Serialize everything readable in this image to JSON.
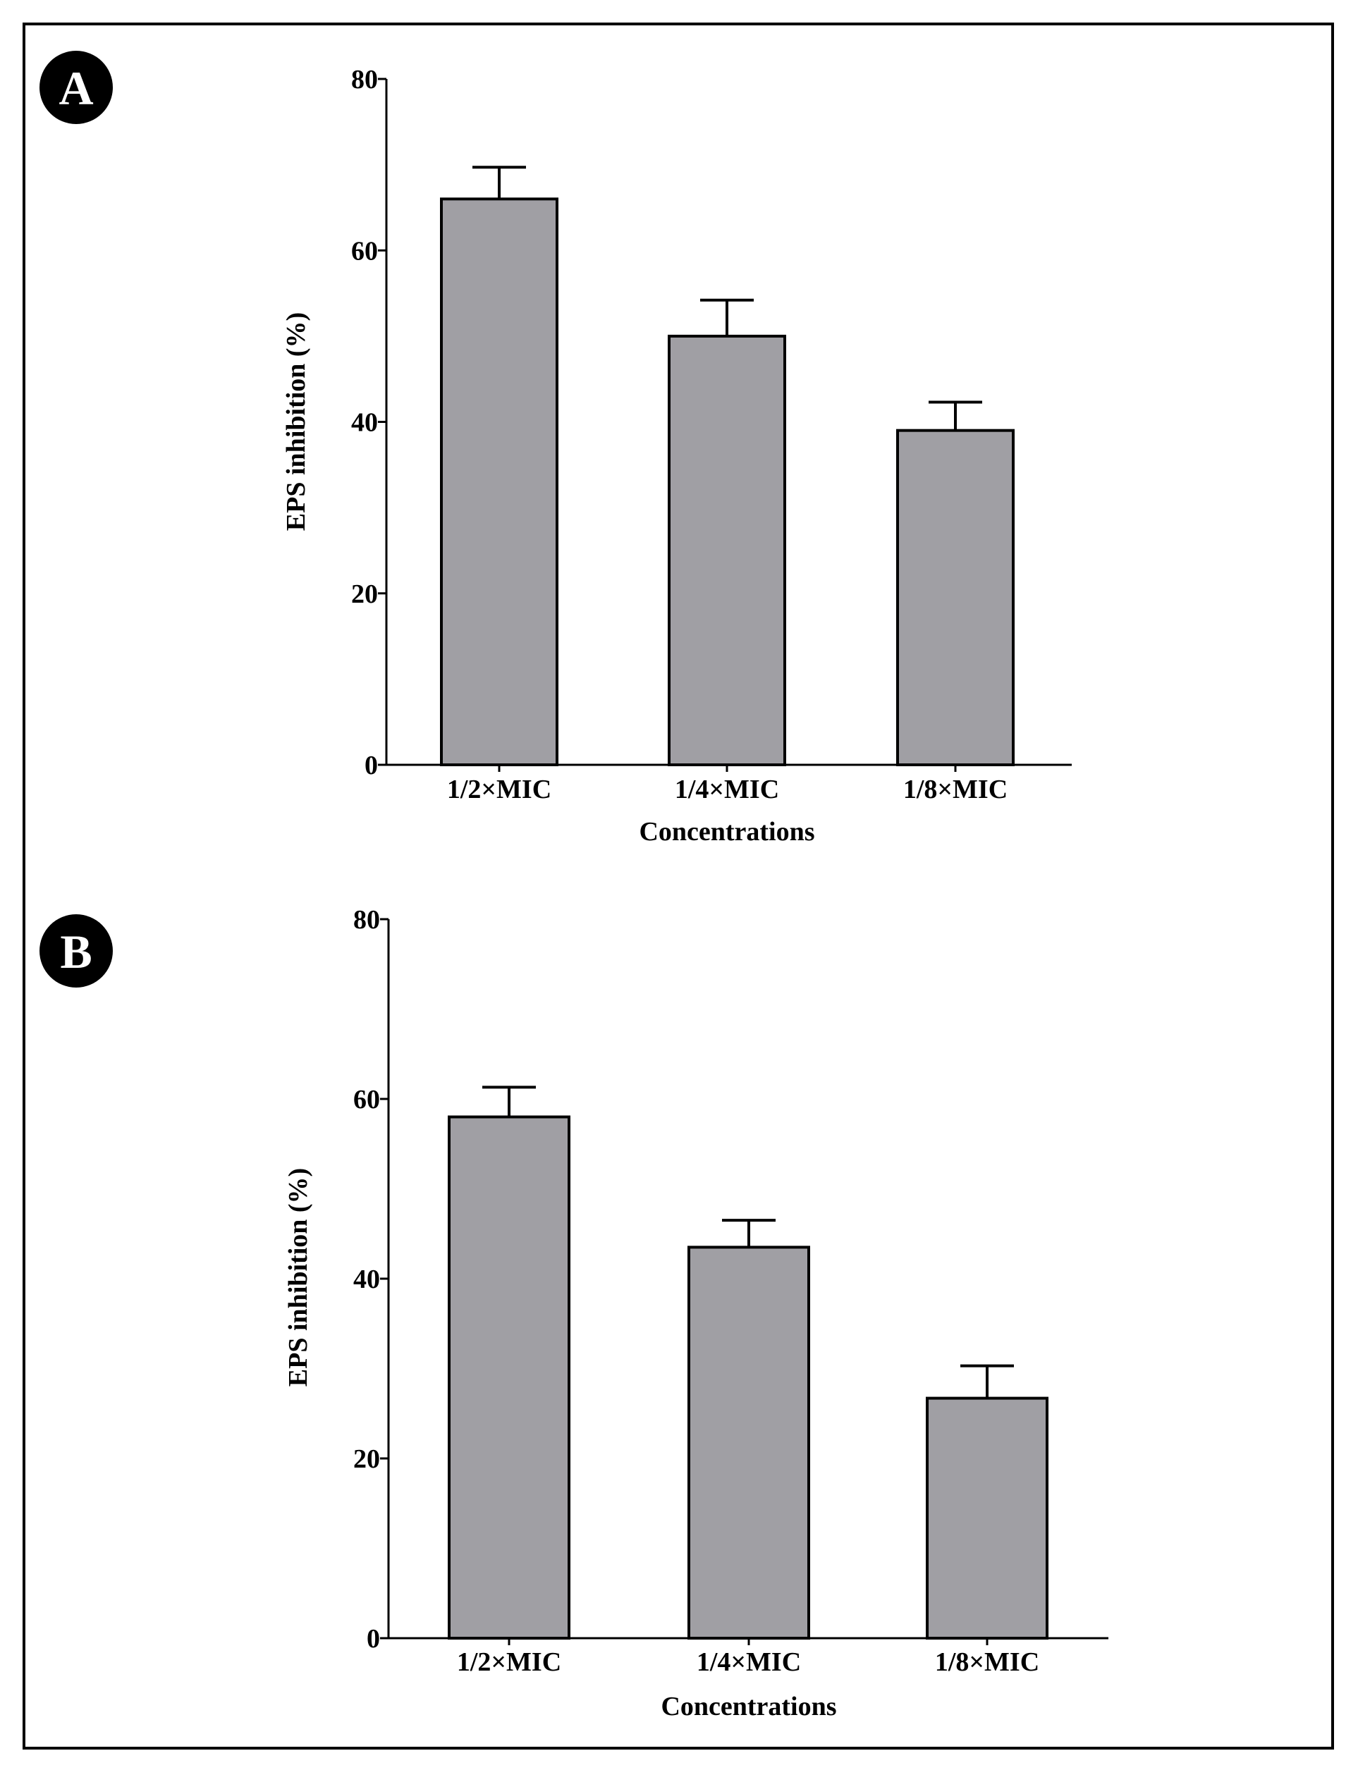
{
  "figure": {
    "bar_color": "#a09fa4",
    "frame_color": "#000000"
  },
  "chart_data": [
    {
      "panel": "A",
      "type": "bar",
      "categories": [
        "1/2×MIC",
        "1/4×MIC",
        "1/8×MIC"
      ],
      "values": [
        66,
        50,
        39
      ],
      "errors": [
        3.7,
        4.2,
        3.3
      ],
      "xlabel": "Concentrations",
      "ylabel": "EPS inhibition (%)",
      "ylim": [
        0,
        80
      ],
      "yticks": [
        "0",
        "20",
        "40",
        "60",
        "80"
      ]
    },
    {
      "panel": "B",
      "type": "bar",
      "categories": [
        "1/2×MIC",
        "1/4×MIC",
        "1/8×MIC"
      ],
      "values": [
        58,
        43.5,
        26.7
      ],
      "errors": [
        3.3,
        3.0,
        3.6
      ],
      "xlabel": "Concentrations",
      "ylabel": "EPS inhibition (%)",
      "ylim": [
        0,
        80
      ],
      "yticks": [
        "0",
        "20",
        "40",
        "60",
        "80"
      ]
    }
  ]
}
